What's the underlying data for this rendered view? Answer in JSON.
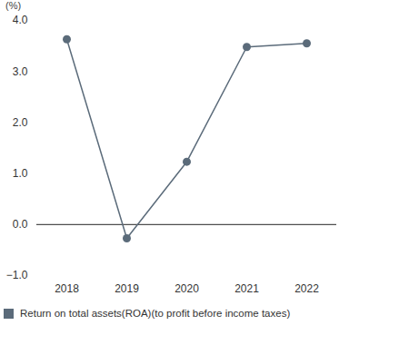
{
  "chart_data": {
    "type": "line",
    "y_label": "(%)",
    "categories": [
      "2018",
      "2019",
      "2020",
      "2021",
      "2022"
    ],
    "series": [
      {
        "name": "Return on total assets(ROA)(to profit before income taxes)",
        "color": "#5b6b7a",
        "marker": "circle",
        "values": [
          3.63,
          -0.27,
          1.23,
          3.48,
          3.55
        ]
      }
    ],
    "ylim": [
      -1,
      4
    ],
    "yticks": [
      -1,
      0,
      1,
      2,
      3,
      4
    ],
    "grid": false,
    "legend": "bottom-left"
  }
}
